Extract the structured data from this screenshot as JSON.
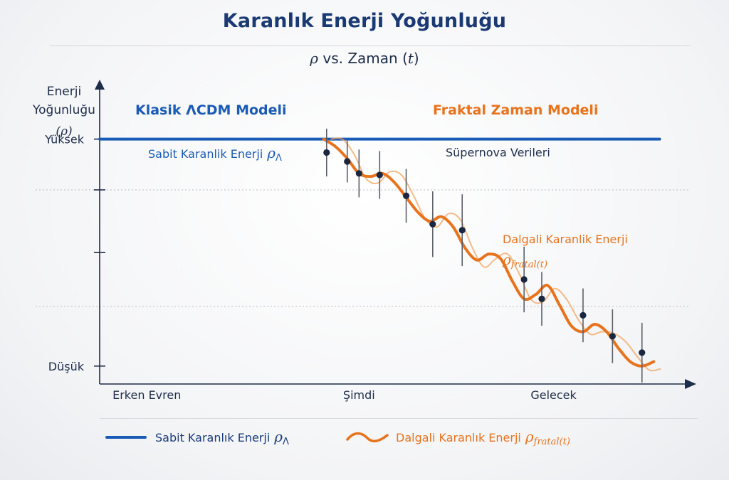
{
  "title": "Karanlık Enerji Yoğunluğu",
  "subtitle_greek": "ρ",
  "subtitle_text": " vs. Zaman (",
  "subtitle_var": "t",
  "subtitle_end": ")",
  "colors": {
    "blue": "#1a5bb5",
    "orange": "#e8731d",
    "dark": "#1e2d4a",
    "title": "#1b3a73"
  },
  "labels": {
    "ylabel_line1": "Enerji",
    "ylabel_line2": "Yoğunluğu",
    "ylabel_line3": "(ρ)",
    "classic_model": "Klasik ΛCDM Modeli",
    "fractal_model": "Fraktal Zaman Modeli",
    "constant_energy_text": "Sabit Karanlik Enerji",
    "constant_energy_symbol": "ρ",
    "constant_energy_sub": "Λ",
    "supernova": "Süpernova Verileri",
    "oscillating_line1": "Dalgali Karanlik Enerji",
    "oscillating_symbol": "ρ",
    "oscillating_sub": "fratal(t)"
  },
  "legend": {
    "blue_text": "Sabit Karanlık Enerji",
    "blue_symbol": "ρ",
    "blue_sub": "Λ",
    "orange_text": "Dalgali Karanlık Enerji",
    "orange_symbol": "ρ",
    "orange_sub": "fratal(t)"
  },
  "chart_data": {
    "type": "line",
    "xlabel": "",
    "ylabel": "Enerji Yoğunluğu (ρ)",
    "xlim": [
      0,
      10
    ],
    "ylim": [
      0,
      10
    ],
    "x_ticks": [
      {
        "x": 0.8,
        "label": "Erken Evren"
      },
      {
        "x": 4.4,
        "label": "Şimdi"
      },
      {
        "x": 7.7,
        "label": "Gelecek"
      }
    ],
    "y_ticks": [
      {
        "y": 8.2,
        "label": "Yüksek"
      },
      {
        "y": 6.5,
        "label": ""
      },
      {
        "y": 4.4,
        "label": ""
      },
      {
        "y": 0.6,
        "label": "Düşük"
      }
    ],
    "gridlines_y": [
      6.5,
      2.6
    ],
    "series": [
      {
        "name": "Sabit Karanlık Enerji ρΛ",
        "style": "constant",
        "x": [
          0,
          1.9,
          3.8,
          5.7,
          7.6,
          9.5
        ],
        "y": [
          8.2,
          8.2,
          8.2,
          8.2,
          8.2,
          8.2
        ]
      },
      {
        "name": "Dalgali Karanlık Enerji ρfratal(t)",
        "style": "oscillating",
        "x": [
          3.8,
          4.0,
          4.2,
          4.4,
          4.6,
          4.8,
          5.0,
          5.2,
          5.4,
          5.6,
          5.8,
          6.0,
          6.2,
          6.4,
          6.6,
          6.8,
          7.0,
          7.2,
          7.4,
          7.6,
          7.8,
          8.0,
          8.2,
          8.4,
          8.6,
          8.8,
          9.0,
          9.2,
          9.4
        ],
        "y": [
          8.2,
          7.95,
          7.55,
          7.05,
          6.95,
          7.05,
          6.75,
          6.25,
          5.75,
          5.45,
          5.6,
          5.25,
          4.55,
          4.15,
          4.35,
          4.2,
          3.45,
          2.85,
          3.0,
          3.3,
          2.65,
          1.95,
          1.75,
          2.0,
          1.75,
          1.2,
          0.75,
          0.6,
          0.75
        ]
      }
    ],
    "supernova_points": [
      {
        "x": 3.85,
        "y": 7.75,
        "err": 0.8
      },
      {
        "x": 4.2,
        "y": 7.45,
        "err": 0.7
      },
      {
        "x": 4.4,
        "y": 7.05,
        "err": 0.8
      },
      {
        "x": 4.75,
        "y": 7.0,
        "err": 0.8
      },
      {
        "x": 5.2,
        "y": 6.3,
        "err": 0.9
      },
      {
        "x": 5.65,
        "y": 5.35,
        "err": 1.1
      },
      {
        "x": 6.15,
        "y": 5.15,
        "err": 1.2
      },
      {
        "x": 7.2,
        "y": 3.5,
        "err": 1.1
      },
      {
        "x": 7.5,
        "y": 2.85,
        "err": 0.9
      },
      {
        "x": 8.2,
        "y": 2.3,
        "err": 0.9
      },
      {
        "x": 8.7,
        "y": 1.6,
        "err": 0.9
      },
      {
        "x": 9.2,
        "y": 1.05,
        "err": 1.0
      }
    ],
    "legend_position": "bottom",
    "grid": false
  }
}
